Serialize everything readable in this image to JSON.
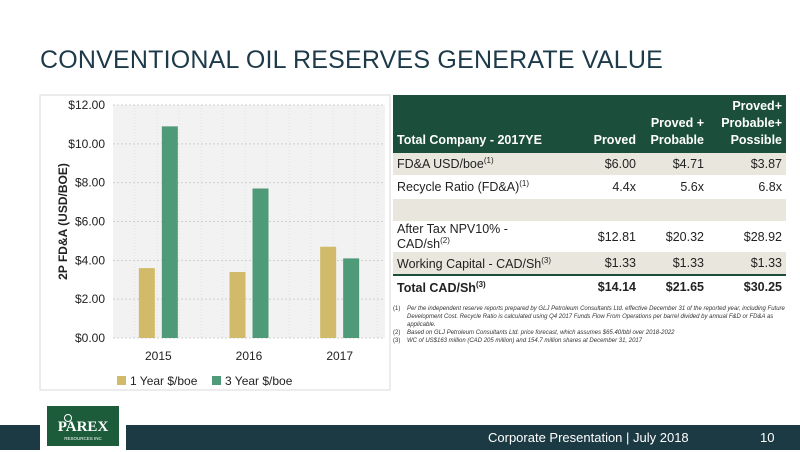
{
  "title": "CONVENTIONAL OIL RESERVES GENERATE VALUE",
  "chart_data": {
    "type": "bar",
    "categories": [
      "2015",
      "2016",
      "2017"
    ],
    "series": [
      {
        "name": "1 Year $/boe",
        "values": [
          3.6,
          3.4,
          4.7
        ],
        "color": "#d1bb6a"
      },
      {
        "name": "3 Year $/boe",
        "values": [
          10.9,
          7.7,
          4.1
        ],
        "color": "#4f9a78"
      }
    ],
    "ylabel": "2P FD&A (USD/BOE)",
    "xlabel": "",
    "ylim": [
      0,
      12
    ],
    "yticks": [
      "$0.00",
      "$2.00",
      "$4.00",
      "$6.00",
      "$8.00",
      "$10.00",
      "$12.00"
    ],
    "grid": true,
    "legend": "bottom"
  },
  "table": {
    "headers": [
      "Total Company - 2017YE",
      "Proved",
      "Proved + Probable",
      "Proved+ Probable+ Possible"
    ],
    "rows": [
      {
        "label": "FD&A USD/boe",
        "sup": "(1)",
        "values": [
          "$6.00",
          "$4.71",
          "$3.87"
        ]
      },
      {
        "label": "Recycle Ratio (FD&A)",
        "sup": "(1)",
        "values": [
          "4.4x",
          "5.6x",
          "6.8x"
        ]
      },
      {
        "label": "After Tax NPV10% - CAD/sh",
        "sup": "(2)",
        "values": [
          "$12.81",
          "$20.32",
          "$28.92"
        ]
      },
      {
        "label": "Working Capital  - CAD/Sh",
        "sup": "(3)",
        "values": [
          "$1.33",
          "$1.33",
          "$1.33"
        ]
      }
    ],
    "total": {
      "label": "Total CAD/Sh",
      "sup": "(3)",
      "values": [
        "$14.14",
        "$21.65",
        "$30.25"
      ]
    }
  },
  "footnotes": [
    {
      "num": "(1)",
      "text": "Per the independent reserve reports prepared by GLJ Petroleum Consultants Ltd. effective December 31 of the reported year, including Future Development Cost. Recycle Ratio is calculated using Q4 2017 Funds Flow From Operations per barrel divided by annual F&D or FD&A as applicable."
    },
    {
      "num": "(2)",
      "text": "Based on GLJ Petroleum Consultants Ltd. price forecast, which assumes $65.40/bbl over 2018-2022"
    },
    {
      "num": "(3)",
      "text": "WC of US$163 million (CAD 205 million) and 154.7 million shares at December 31, 2017"
    }
  ],
  "footer": {
    "text": "Corporate Presentation  |  July 2018",
    "page": "10"
  },
  "logo": {
    "text": "PAREX",
    "subtext": "RESOURCES INC"
  }
}
